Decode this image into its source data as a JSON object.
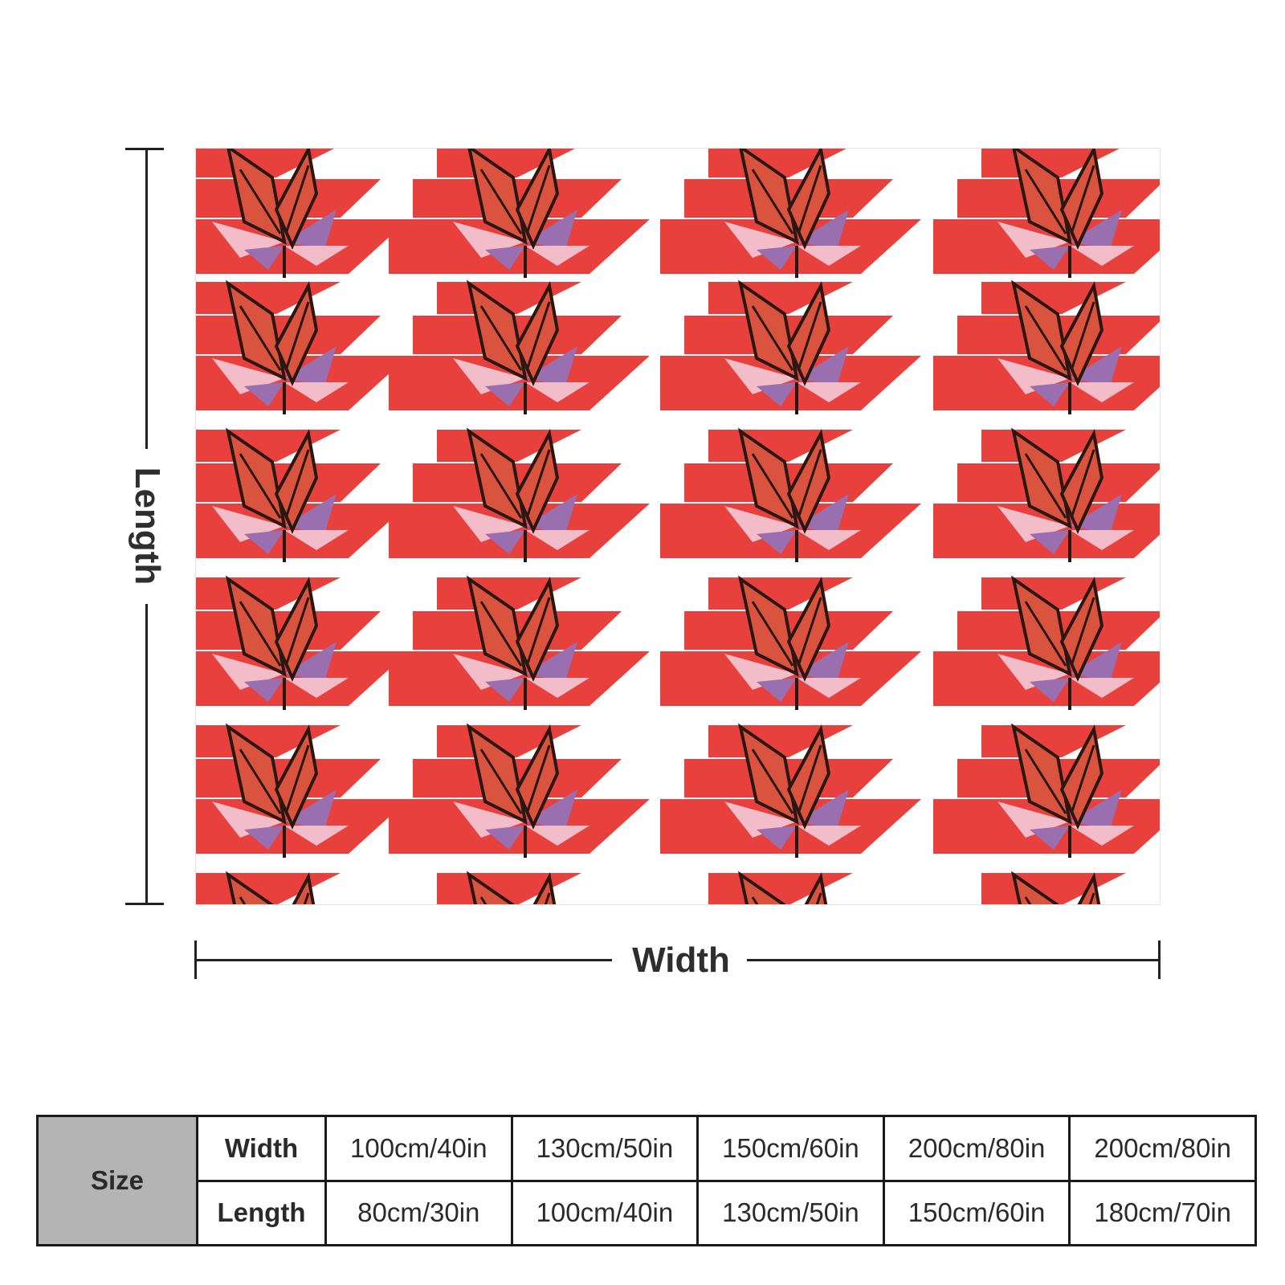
{
  "product": {
    "pattern_colors": {
      "red": "#e8403c",
      "white": "#ffffff",
      "butterfly": "#d9533f",
      "butterfly_dark": "#2a1712",
      "petal_purple": "#9a6fb0",
      "petal_pink": "#f2bcc8"
    }
  },
  "dimensions": {
    "length_label": "Length",
    "width_label": "Width"
  },
  "size_table": {
    "size_label": "Size",
    "width_label": "Width",
    "length_label": "Length",
    "widths": [
      "100cm/40in",
      "130cm/50in",
      "150cm/60in",
      "200cm/80in",
      "200cm/80in"
    ],
    "lengths": [
      "80cm/30in",
      "100cm/40in",
      "130cm/50in",
      "150cm/60in",
      "180cm/70in"
    ]
  }
}
